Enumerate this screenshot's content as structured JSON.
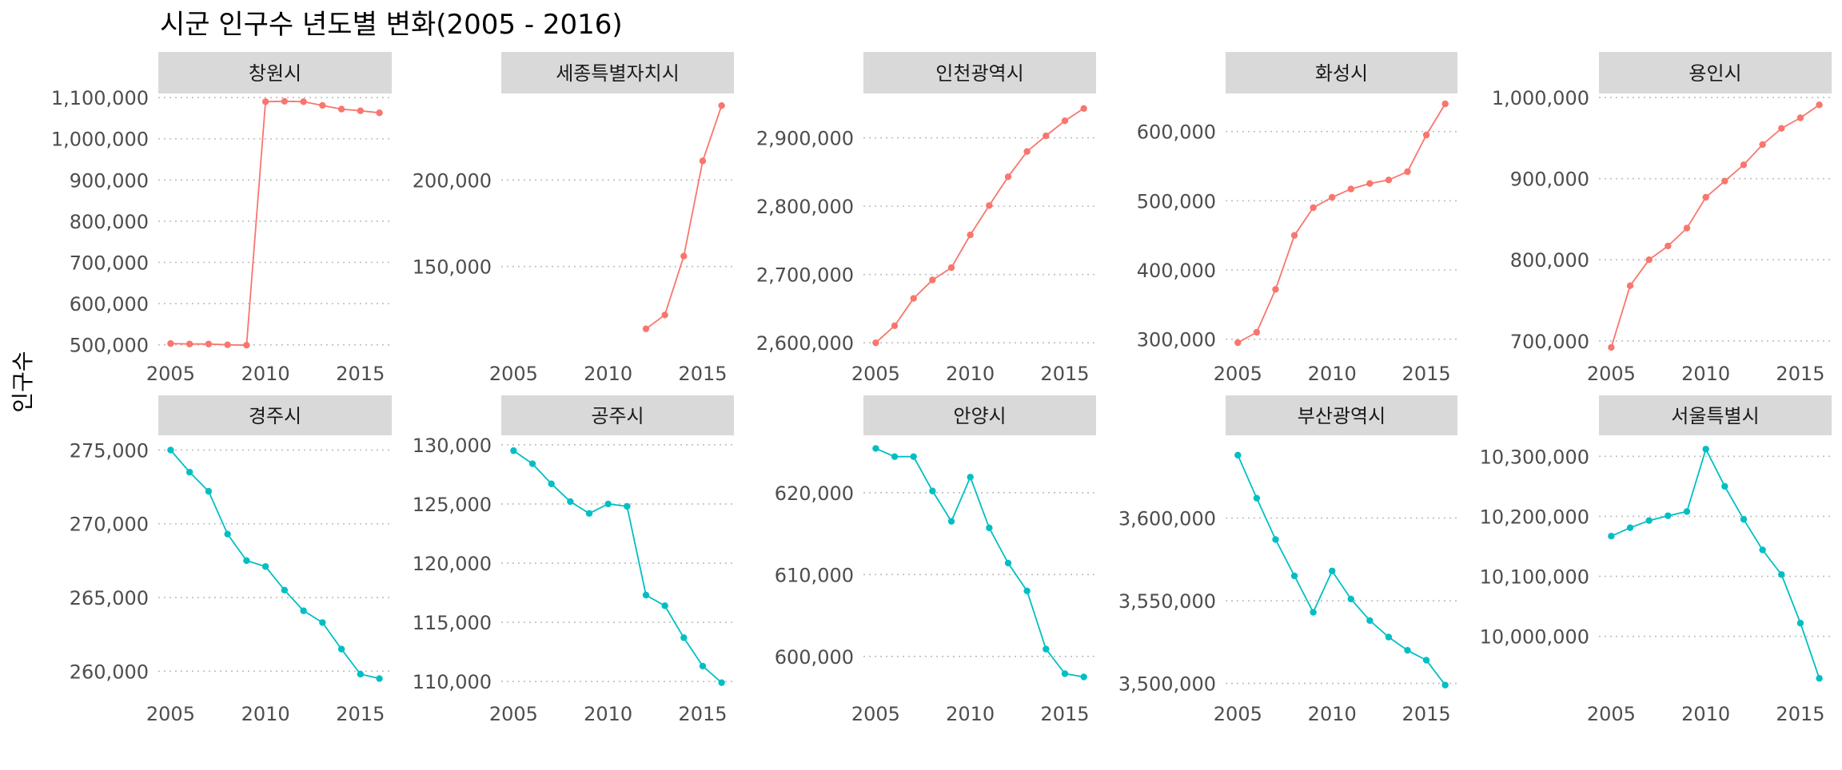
{
  "title": "시군 인구수 년도별 변화(2005 - 2016)",
  "ylabel": "인구수",
  "colors": {
    "increase": "#F8766D",
    "decrease": "#00BFC4",
    "strip": "#D9D9D9",
    "grid": "#BEBEBE",
    "tick_text": "#4D4D4D"
  },
  "chart_data": [
    {
      "type": "line",
      "name": "창원시",
      "x": [
        2005,
        2006,
        2007,
        2008,
        2009,
        2010,
        2011,
        2012,
        2013,
        2014,
        2015,
        2016
      ],
      "values": [
        503000,
        502000,
        502000,
        500000,
        499000,
        1090000,
        1091000,
        1090000,
        1081000,
        1072000,
        1068000,
        1063000
      ],
      "ylim": [
        480000,
        1110000
      ],
      "yticks": [
        500000,
        600000,
        700000,
        800000,
        900000,
        1000000,
        1100000
      ]
    },
    {
      "type": "line",
      "name": "세종특별자치시",
      "x": [
        2012,
        2013,
        2014,
        2015,
        2016
      ],
      "values": [
        114000,
        122000,
        156000,
        211000,
        243000
      ],
      "ylim": [
        100000,
        250000
      ],
      "yticks": [
        150000,
        200000
      ]
    },
    {
      "type": "line",
      "name": "인천광역시",
      "x": [
        2005,
        2006,
        2007,
        2008,
        2009,
        2010,
        2011,
        2012,
        2013,
        2014,
        2015,
        2016
      ],
      "values": [
        2600000,
        2625000,
        2665000,
        2692000,
        2710000,
        2758000,
        2801000,
        2843000,
        2880000,
        2903000,
        2925000,
        2943000
      ],
      "ylim": [
        2585000,
        2965000
      ],
      "yticks": [
        2600000,
        2700000,
        2800000,
        2900000
      ]
    },
    {
      "type": "line",
      "name": "화성시",
      "x": [
        2005,
        2006,
        2007,
        2008,
        2009,
        2010,
        2011,
        2012,
        2013,
        2014,
        2015,
        2016
      ],
      "values": [
        295000,
        310000,
        372000,
        450000,
        490000,
        505000,
        517000,
        525000,
        530000,
        542000,
        595000,
        640000
      ],
      "ylim": [
        280000,
        655000
      ],
      "yticks": [
        300000,
        400000,
        500000,
        600000
      ]
    },
    {
      "type": "line",
      "name": "용인시",
      "x": [
        2005,
        2006,
        2007,
        2008,
        2009,
        2010,
        2011,
        2012,
        2013,
        2014,
        2015,
        2016
      ],
      "values": [
        692000,
        768000,
        800000,
        817000,
        839000,
        877000,
        897000,
        917000,
        942000,
        962000,
        975000,
        991000
      ],
      "ylim": [
        685000,
        1005000
      ],
      "yticks": [
        700000,
        800000,
        900000,
        1000000
      ]
    },
    {
      "type": "line",
      "name": "경주시",
      "x": [
        2005,
        2006,
        2007,
        2008,
        2009,
        2010,
        2011,
        2012,
        2013,
        2014,
        2015,
        2016
      ],
      "values": [
        275000,
        273500,
        272200,
        269300,
        267500,
        267100,
        265500,
        264100,
        263300,
        261500,
        259800,
        259500
      ],
      "ylim": [
        258500,
        276000
      ],
      "yticks": [
        260000,
        265000,
        270000,
        275000
      ]
    },
    {
      "type": "line",
      "name": "공주시",
      "x": [
        2005,
        2006,
        2007,
        2008,
        2009,
        2010,
        2011,
        2012,
        2013,
        2014,
        2015,
        2016
      ],
      "values": [
        129500,
        128400,
        126700,
        125200,
        124200,
        125000,
        124800,
        117300,
        116400,
        113700,
        111300,
        109900
      ],
      "ylim": [
        109000,
        130800
      ],
      "yticks": [
        110000,
        115000,
        120000,
        125000,
        130000
      ]
    },
    {
      "type": "line",
      "name": "안양시",
      "x": [
        2005,
        2006,
        2007,
        2008,
        2009,
        2010,
        2011,
        2012,
        2013,
        2014,
        2015,
        2016
      ],
      "values": [
        625400,
        624400,
        624400,
        620200,
        616500,
        621900,
        615700,
        611400,
        608000,
        600900,
        597900,
        597500
      ],
      "ylim": [
        595500,
        627000
      ],
      "yticks": [
        600000,
        610000,
        620000
      ]
    },
    {
      "type": "line",
      "name": "부산광역시",
      "x": [
        2005,
        2006,
        2007,
        2008,
        2009,
        2010,
        2011,
        2012,
        2013,
        2014,
        2015,
        2016
      ],
      "values": [
        3638000,
        3612000,
        3587000,
        3565000,
        3543000,
        3568000,
        3551000,
        3538000,
        3528000,
        3520000,
        3514000,
        3499000
      ],
      "ylim": [
        3494000,
        3650000
      ],
      "yticks": [
        3500000,
        3550000,
        3600000
      ]
    },
    {
      "type": "line",
      "name": "서울특별시",
      "x": [
        2005,
        2006,
        2007,
        2008,
        2009,
        2010,
        2011,
        2012,
        2013,
        2014,
        2015,
        2016
      ],
      "values": [
        10167000,
        10181000,
        10193000,
        10201000,
        10208000,
        10312000,
        10250000,
        10195000,
        10144000,
        10103000,
        10022000,
        9930000
      ],
      "ylim": [
        9905000,
        10335000
      ],
      "yticks": [
        10000000,
        10100000,
        10200000,
        10300000
      ]
    }
  ]
}
